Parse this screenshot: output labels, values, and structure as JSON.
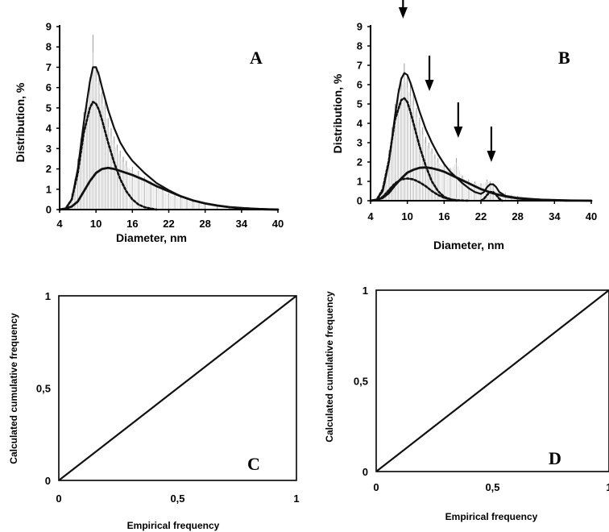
{
  "chart_data": [
    {
      "type": "bar",
      "panel": "A",
      "xlabel": "Diameter, nm",
      "ylabel": "Distribution, %",
      "xlim": [
        4,
        40
      ],
      "ylim": [
        0,
        9
      ],
      "xticks": [
        "4",
        "10",
        "16",
        "22",
        "28",
        "34",
        "40"
      ],
      "yticks": [
        "0",
        "1",
        "2",
        "3",
        "4",
        "5",
        "6",
        "7",
        "8",
        "9"
      ],
      "histogram": {
        "x": [
          5,
          5.5,
          6,
          6.5,
          7,
          7.5,
          8,
          8.5,
          9,
          9.5,
          10,
          10.5,
          11,
          11.5,
          12,
          12.5,
          13,
          13.5,
          14,
          14.5,
          15,
          16,
          17,
          18,
          19,
          20,
          21,
          22,
          23,
          24,
          25,
          26,
          27,
          28,
          30,
          32,
          34
        ],
        "values": [
          0.1,
          0.3,
          0.8,
          1.5,
          2.5,
          3.5,
          4.8,
          5.5,
          6.5,
          8.6,
          7.0,
          6.8,
          5.8,
          5.5,
          4.5,
          4.0,
          3.6,
          3.2,
          2.9,
          2.6,
          2.4,
          2.1,
          1.9,
          1.6,
          1.4,
          1.2,
          1.0,
          0.8,
          0.7,
          0.6,
          0.5,
          0.4,
          0.3,
          0.25,
          0.15,
          0.1,
          0.05
        ]
      },
      "series": [
        {
          "style": "solid",
          "x": [
            4,
            5,
            6,
            7,
            8,
            9,
            9.5,
            10,
            10.5,
            11,
            12,
            13,
            14,
            15,
            16,
            18,
            20,
            22,
            24,
            26,
            28,
            30,
            32,
            34,
            36,
            38,
            40
          ],
          "values": [
            0,
            0.05,
            0.5,
            2.0,
            4.3,
            6.3,
            7.0,
            7.0,
            6.6,
            6.0,
            4.9,
            4.0,
            3.3,
            2.8,
            2.4,
            1.8,
            1.3,
            0.95,
            0.65,
            0.45,
            0.3,
            0.2,
            0.12,
            0.08,
            0.05,
            0.02,
            0
          ]
        },
        {
          "style": "dotted",
          "x": [
            4,
            5,
            6,
            7,
            8,
            9,
            9.5,
            10,
            10.5,
            11,
            12,
            13,
            14,
            15,
            16,
            17,
            18,
            19,
            20
          ],
          "values": [
            0,
            0.05,
            0.5,
            1.8,
            3.8,
            5.0,
            5.3,
            5.2,
            4.9,
            4.4,
            3.3,
            2.3,
            1.5,
            0.9,
            0.5,
            0.25,
            0.12,
            0.05,
            0
          ]
        },
        {
          "style": "solid-thick",
          "x": [
            4,
            5,
            6,
            7,
            8,
            9,
            10,
            11,
            12,
            13,
            14,
            16,
            18,
            20,
            22,
            24,
            26,
            28,
            30,
            32,
            34,
            36,
            38,
            40
          ],
          "values": [
            0,
            0.05,
            0.15,
            0.4,
            0.9,
            1.4,
            1.8,
            2.0,
            2.05,
            2.0,
            1.9,
            1.7,
            1.45,
            1.15,
            0.9,
            0.65,
            0.45,
            0.3,
            0.2,
            0.12,
            0.07,
            0.03,
            0.01,
            0
          ]
        }
      ]
    },
    {
      "type": "bar",
      "panel": "B",
      "xlabel": "Diameter, nm",
      "ylabel": "Distribution, %",
      "xlim": [
        4,
        40
      ],
      "ylim": [
        0,
        9
      ],
      "xticks": [
        "4",
        "10",
        "16",
        "22",
        "28",
        "34",
        "40"
      ],
      "yticks": [
        "0",
        "1",
        "2",
        "3",
        "4",
        "5",
        "6",
        "7",
        "8",
        "9"
      ],
      "arrows_at_x": [
        9.3,
        13.6,
        18.3,
        23.7
      ],
      "histogram": {
        "x": [
          5,
          5.5,
          6,
          6.5,
          7,
          7.5,
          8,
          8.5,
          9,
          9.5,
          10,
          10.5,
          11,
          11.5,
          12,
          12.5,
          13,
          13.5,
          14,
          14.5,
          15,
          16,
          17,
          18,
          19,
          20,
          21,
          22,
          23,
          23.5,
          24,
          25,
          26,
          27,
          28,
          30,
          32,
          34
        ],
        "values": [
          0.1,
          0.3,
          0.8,
          1.5,
          2.6,
          3.8,
          5.0,
          5.8,
          6.4,
          7.1,
          6.5,
          6.0,
          5.5,
          4.8,
          4.3,
          3.8,
          3.3,
          3.0,
          2.7,
          2.4,
          2.2,
          1.9,
          1.7,
          2.2,
          1.3,
          1.1,
          1.0,
          0.9,
          1.1,
          1.0,
          0.8,
          0.5,
          0.4,
          0.3,
          0.25,
          0.15,
          0.1,
          0.05
        ]
      },
      "series": [
        {
          "style": "solid",
          "x": [
            4,
            5,
            6,
            7,
            8,
            8.5,
            9,
            9.5,
            10,
            10.5,
            11,
            12,
            13,
            14,
            15,
            16,
            17,
            18,
            19,
            20,
            21,
            22,
            22.5,
            23,
            23.5,
            24,
            24.5,
            25,
            26,
            28,
            30,
            32,
            34,
            36,
            38,
            40
          ],
          "values": [
            0,
            0.05,
            0.5,
            2.0,
            4.4,
            5.5,
            6.3,
            6.6,
            6.5,
            6.1,
            5.6,
            4.6,
            3.7,
            3.0,
            2.4,
            1.9,
            1.5,
            1.2,
            0.9,
            0.65,
            0.45,
            0.35,
            0.45,
            0.7,
            0.85,
            0.85,
            0.7,
            0.45,
            0.25,
            0.15,
            0.1,
            0.06,
            0.04,
            0.02,
            0.01,
            0
          ]
        },
        {
          "style": "dotted",
          "x": [
            4,
            5,
            6,
            7,
            8,
            9,
            9.5,
            10,
            10.5,
            11,
            12,
            13,
            14,
            15,
            16,
            17,
            18
          ],
          "values": [
            0,
            0.05,
            0.6,
            2.1,
            4.2,
            5.2,
            5.3,
            5.1,
            4.6,
            4.0,
            2.8,
            1.8,
            1.0,
            0.5,
            0.2,
            0.08,
            0
          ]
        },
        {
          "style": "solid-thick",
          "x": [
            4,
            5,
            6,
            7,
            8,
            9,
            10,
            11,
            12,
            13,
            14,
            15,
            16,
            18,
            20,
            22,
            24,
            26,
            28,
            30,
            32,
            34,
            36,
            38,
            40
          ],
          "values": [
            0,
            0.05,
            0.15,
            0.4,
            0.8,
            1.15,
            1.45,
            1.6,
            1.7,
            1.72,
            1.68,
            1.6,
            1.5,
            1.2,
            0.9,
            0.6,
            0.38,
            0.22,
            0.12,
            0.07,
            0.04,
            0.02,
            0.01,
            0.005,
            0
          ]
        },
        {
          "style": "dotted",
          "x": [
            4,
            5,
            6,
            7,
            8,
            9,
            10,
            11,
            12,
            13,
            14,
            15,
            16,
            17,
            18,
            19,
            20
          ],
          "values": [
            0,
            0.03,
            0.2,
            0.55,
            0.9,
            1.1,
            1.15,
            1.1,
            0.95,
            0.75,
            0.5,
            0.3,
            0.15,
            0.07,
            0.03,
            0.01,
            0
          ]
        },
        {
          "style": "dotted",
          "x": [
            22,
            22.5,
            23,
            23.5,
            24,
            24.5,
            25,
            25.5
          ],
          "values": [
            0,
            0.1,
            0.3,
            0.45,
            0.45,
            0.3,
            0.1,
            0
          ]
        }
      ]
    },
    {
      "type": "line",
      "panel": "C",
      "xlabel": "Empirical frequency",
      "ylabel": "Calculated cumulative frequency",
      "xlim": [
        0,
        1
      ],
      "ylim": [
        0,
        1
      ],
      "xticks": [
        "0",
        "0,5",
        "1"
      ],
      "yticks": [
        "0",
        "0,5",
        "1"
      ],
      "series": [
        {
          "x": [
            0,
            0.25,
            0.5,
            0.75,
            1
          ],
          "values": [
            0,
            0.25,
            0.5,
            0.75,
            1
          ]
        }
      ]
    },
    {
      "type": "line",
      "panel": "D",
      "xlabel": "Empirical frequency",
      "ylabel": "Calculated cumulative frequency",
      "xlim": [
        0,
        1
      ],
      "ylim": [
        0,
        1
      ],
      "xticks": [
        "0",
        "0,5",
        "1"
      ],
      "yticks": [
        "0",
        "0,5",
        "1"
      ],
      "series": [
        {
          "x": [
            0,
            0.25,
            0.5,
            0.75,
            1
          ],
          "values": [
            0,
            0.25,
            0.5,
            0.75,
            1
          ]
        }
      ]
    }
  ]
}
